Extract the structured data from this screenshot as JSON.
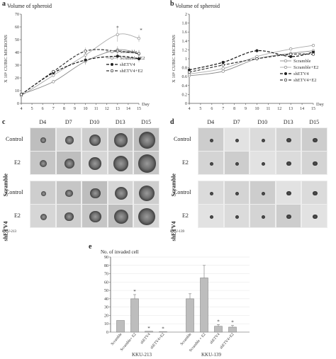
{
  "panels": {
    "a": {
      "label": "a",
      "title": "Volume of spheroid",
      "ylabel": "X 10⁵ CUBIC MICRONS",
      "xlabel": "Day",
      "yticks": [
        0,
        10,
        20,
        30,
        40,
        50,
        60,
        70
      ],
      "xticks": [
        4,
        5,
        6,
        7,
        8,
        9,
        10,
        11,
        12,
        13,
        14,
        15
      ],
      "star": "*"
    },
    "b": {
      "label": "b",
      "title": "Volume of spheroid",
      "ylabel": "X 10⁵ CUBIC MICRONS",
      "xlabel": "Day",
      "yticks": [
        0,
        0.2,
        0.4,
        0.6,
        0.8,
        1,
        1.2,
        1.4,
        1.6,
        1.8,
        2
      ],
      "xticks": [
        4,
        5,
        6,
        7,
        8,
        9,
        10,
        11,
        12,
        13,
        14,
        15
      ]
    },
    "c": {
      "label": "c",
      "columns": [
        "D4",
        "D7",
        "D10",
        "D13",
        "D15"
      ],
      "rows": [
        "Control",
        "E2",
        "Control",
        "E2"
      ],
      "groups": [
        "Scramble",
        "shETV4"
      ],
      "cell_line": "KKU-213"
    },
    "d": {
      "label": "d",
      "columns": [
        "D4",
        "D7",
        "D10",
        "D13",
        "D15"
      ],
      "rows": [
        "Control",
        "E2",
        "Control",
        "E2"
      ],
      "groups": [
        "Scramble",
        "shETV4"
      ],
      "cell_line": "KKU-139"
    },
    "e": {
      "label": "e",
      "title": "No. of invaded cell",
      "groups": [
        "KKU-213",
        "KKU-139"
      ],
      "star": "*"
    }
  },
  "legend": [
    "Scramble",
    "Scramble+E2",
    "shETV4",
    "shETV4+E2"
  ],
  "chart_data": [
    {
      "type": "line",
      "title": "Volume of spheroid",
      "ylabel": "X 10⁵ CUBIC MICRONS",
      "xlabel": "Day",
      "x": [
        4,
        7,
        10,
        13,
        15
      ],
      "ylim": [
        0,
        70
      ],
      "xlim": [
        4,
        15
      ],
      "series": [
        {
          "name": "Scramble",
          "values": [
            7,
            17,
            33,
            42,
            39
          ]
        },
        {
          "name": "Scramble+E2",
          "values": [
            6,
            22,
            38,
            54,
            51
          ]
        },
        {
          "name": "shETV4",
          "values": [
            7,
            24,
            34,
            37,
            35
          ]
        },
        {
          "name": "shETV4+E2",
          "values": [
            7,
            25,
            41,
            41,
            39
          ]
        }
      ]
    },
    {
      "type": "line",
      "title": "Volume of spheroid",
      "ylabel": "X 10⁵ CUBIC MICRONS",
      "xlabel": "Day",
      "x": [
        4,
        7,
        10,
        13,
        15
      ],
      "ylim": [
        0,
        2
      ],
      "xlim": [
        4,
        15
      ],
      "series": [
        {
          "name": "Scramble",
          "values": [
            0.62,
            0.72,
            1.0,
            1.12,
            1.18
          ]
        },
        {
          "name": "Scramble+E2",
          "values": [
            0.66,
            0.78,
            1.05,
            1.22,
            1.3
          ]
        },
        {
          "name": "shETV4",
          "values": [
            0.75,
            0.92,
            1.18,
            1.05,
            1.15
          ]
        },
        {
          "name": "shETV4+E2",
          "values": [
            0.7,
            0.86,
            1.0,
            1.1,
            1.1
          ]
        }
      ]
    },
    {
      "type": "bar",
      "title": "No. of invaded cell",
      "ylim": [
        0,
        90
      ],
      "yticks": [
        0,
        10,
        20,
        30,
        40,
        50,
        60,
        70,
        80,
        90
      ],
      "categories": [
        "Scramble",
        "Scramble+ E2",
        "shETV4",
        "shETV4+E2",
        "Scramble",
        "Scramble + E2",
        "shETV4",
        "shETV4+E2"
      ],
      "values": [
        14,
        40,
        1,
        0.5,
        40,
        65,
        7,
        6
      ],
      "errors": [
        0,
        5,
        0,
        0,
        6,
        15,
        2,
        2
      ],
      "stars": [
        false,
        true,
        true,
        true,
        false,
        false,
        true,
        true
      ]
    }
  ],
  "colors": {
    "bar": "#bdbdbd",
    "axis": "#555555",
    "grid": "#dddddd",
    "micro_bg_c": "#c8c8c8",
    "micro_bg_d": "#d8d8d8"
  }
}
